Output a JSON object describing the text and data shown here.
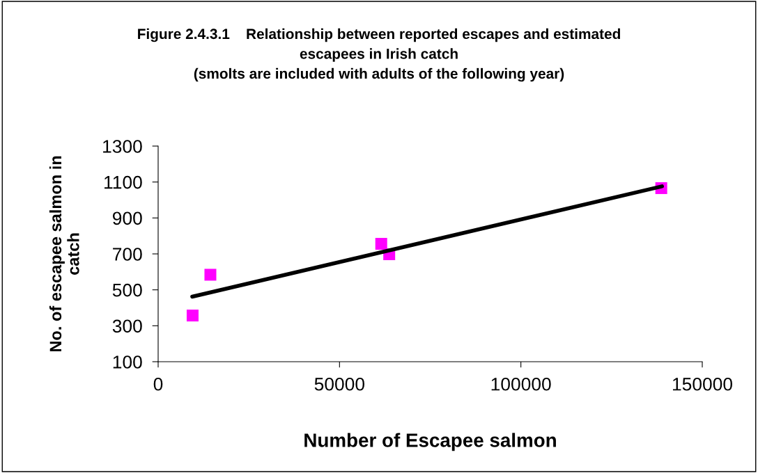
{
  "chart_data": {
    "type": "scatter",
    "title": "Figure 2.4.3.1    Relationship between reported escapes and estimated\nescapees in Irish catch\n(smolts are included with adults of the following year)",
    "xlabel": "Number of Escapee salmon",
    "ylabel": "No. of escapee salmon in\ncatch",
    "series": [
      {
        "color": "#ff00ff",
        "marker": "square",
        "x": [
          9500,
          14400,
          61500,
          63700,
          138700
        ],
        "values": [
          357,
          584,
          756,
          698,
          1066
        ]
      },
      {
        "type": "line",
        "color": "#000000",
        "marker": "none",
        "line_style": "solid",
        "x": [
          9400,
          138900
        ],
        "values": [
          462,
          1076
        ]
      }
    ],
    "xlim": [
      0,
      150000
    ],
    "xticks": [
      0,
      50000,
      100000,
      150000
    ],
    "ylim": [
      100,
      1300
    ],
    "yticks": [
      100,
      300,
      500,
      700,
      900,
      1100,
      1300
    ],
    "grid": false,
    "legend": false
  }
}
